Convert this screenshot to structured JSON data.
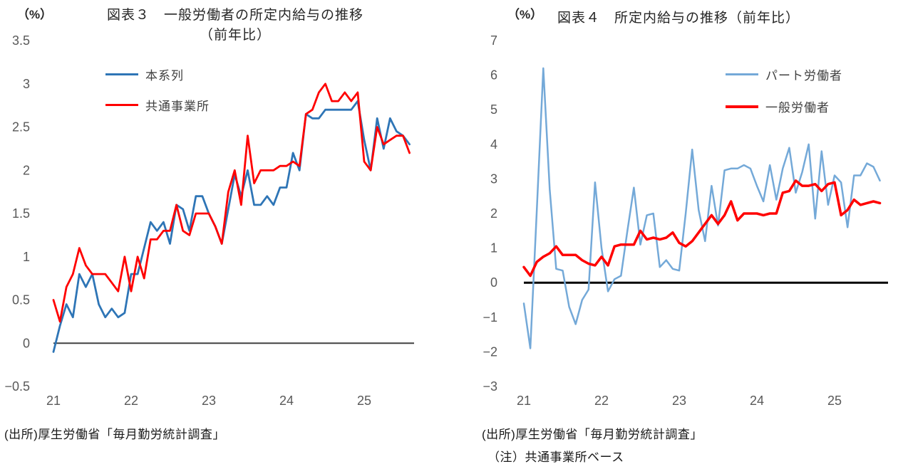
{
  "background": "#ffffff",
  "axis_text_color": "#595959",
  "charts": [
    {
      "pct_label": "（%）",
      "title_line1": "図表３　一般労働者の所定内給与の推移",
      "title_line2": "（前年比）",
      "source_note": "(出所)厚生労働省「毎月勤労統計調査」",
      "legend": [
        {
          "label": "本系列",
          "color": "#2E75B6"
        },
        {
          "label": "共通事業所",
          "color": "#FF0000"
        }
      ],
      "chart_data": {
        "type": "line",
        "title": "図表３　一般労働者の所定内給与の推移（前年比）",
        "ylabel": "（%）",
        "x_start": "2021-01",
        "x_frequency": "monthly",
        "x_tick_labels": [
          "21",
          "22",
          "23",
          "24",
          "25"
        ],
        "x_tick_month_indices": [
          0,
          12,
          24,
          36,
          48
        ],
        "ylim": [
          -0.5,
          3.5
        ],
        "y_tick_step": 0.5,
        "grid": false,
        "zero_line": true,
        "zero_line_color": "#404040",
        "zero_line_width": 2,
        "legend_position": "top-left-inside",
        "series": [
          {
            "name": "本系列",
            "color": "#2E75B6",
            "width": 2.8,
            "values": [
              -0.1,
              0.2,
              0.45,
              0.3,
              0.8,
              0.65,
              0.8,
              0.45,
              0.3,
              0.4,
              0.3,
              0.35,
              0.8,
              0.8,
              1.1,
              1.4,
              1.3,
              1.4,
              1.15,
              1.6,
              1.55,
              1.3,
              1.7,
              1.7,
              1.5,
              1.35,
              1.15,
              1.55,
              1.95,
              1.7,
              2.0,
              1.6,
              1.6,
              1.7,
              1.6,
              1.8,
              1.8,
              2.2,
              2.0,
              2.65,
              2.6,
              2.6,
              2.7,
              2.7,
              2.7,
              2.7,
              2.7,
              2.8,
              2.35,
              2.0,
              2.6,
              2.25,
              2.6,
              2.45,
              2.4,
              2.3
            ]
          },
          {
            "name": "共通事業所",
            "color": "#FF0000",
            "width": 2.8,
            "values": [
              0.5,
              0.25,
              0.65,
              0.8,
              1.1,
              0.9,
              0.8,
              0.8,
              0.8,
              0.7,
              0.6,
              1.0,
              0.6,
              1.0,
              0.75,
              1.2,
              1.2,
              1.3,
              1.3,
              1.6,
              1.3,
              1.25,
              1.5,
              1.5,
              1.5,
              1.35,
              1.15,
              1.75,
              2.0,
              1.6,
              2.4,
              1.85,
              2.0,
              2.0,
              2.0,
              2.05,
              2.05,
              2.1,
              2.05,
              2.65,
              2.7,
              2.9,
              3.0,
              2.8,
              2.8,
              2.9,
              2.8,
              2.9,
              2.1,
              2.0,
              2.5,
              2.3,
              2.35,
              2.4,
              2.4,
              2.2
            ]
          }
        ]
      }
    },
    {
      "pct_label": "（%）",
      "title_line1": "図表４　所定内給与の推移（前年比）",
      "source_note": "(出所)厚生労働省「毎月勤労統計調査」",
      "source_note2": "（注）共通事業所ベース",
      "legend": [
        {
          "label": "パート労働者",
          "color": "#74A9D8"
        },
        {
          "label": "一般労働者",
          "color": "#FF0000"
        }
      ],
      "chart_data": {
        "type": "line",
        "title": "図表４　所定内給与の推移（前年比）",
        "ylabel": "（%）",
        "x_start": "2021-01",
        "x_frequency": "monthly",
        "x_tick_labels": [
          "21",
          "22",
          "23",
          "24",
          "25"
        ],
        "x_tick_month_indices": [
          0,
          12,
          24,
          36,
          48
        ],
        "ylim": [
          -3,
          7
        ],
        "y_tick_step": 1,
        "grid": false,
        "zero_line": true,
        "zero_line_color": "#000000",
        "zero_line_width": 3,
        "legend_position": "top-right-inside",
        "series": [
          {
            "name": "パート労働者",
            "color": "#74A9D8",
            "width": 2.5,
            "values": [
              -0.6,
              -1.9,
              2.1,
              6.2,
              2.7,
              0.4,
              0.35,
              -0.7,
              -1.2,
              -0.5,
              -0.2,
              2.9,
              1.0,
              -0.25,
              0.1,
              0.2,
              1.5,
              2.75,
              1.1,
              1.95,
              2.0,
              0.45,
              0.65,
              0.4,
              0.35,
              2.0,
              3.85,
              2.1,
              1.2,
              2.8,
              1.65,
              3.25,
              3.3,
              3.3,
              3.4,
              3.3,
              2.8,
              2.35,
              3.4,
              2.4,
              3.3,
              3.9,
              2.6,
              3.2,
              4.0,
              1.85,
              3.8,
              2.25,
              3.1,
              2.9,
              1.6,
              3.1,
              3.1,
              3.45,
              3.35,
              2.95
            ]
          },
          {
            "name": "一般労働者",
            "color": "#FF0000",
            "width": 3.5,
            "values": [
              0.45,
              0.2,
              0.6,
              0.75,
              0.85,
              1.05,
              0.8,
              0.8,
              0.8,
              0.65,
              0.55,
              0.5,
              0.75,
              0.5,
              1.05,
              1.1,
              1.1,
              1.1,
              1.5,
              1.25,
              1.3,
              1.25,
              1.3,
              1.45,
              1.15,
              1.05,
              1.2,
              1.45,
              1.7,
              1.95,
              1.7,
              1.95,
              2.35,
              1.8,
              2.0,
              2.0,
              2.0,
              1.95,
              2.0,
              2.0,
              2.6,
              2.65,
              2.95,
              2.8,
              2.8,
              2.85,
              2.65,
              2.85,
              2.9,
              1.95,
              2.1,
              2.4,
              2.25,
              2.3,
              2.35,
              2.3
            ]
          }
        ]
      }
    }
  ]
}
